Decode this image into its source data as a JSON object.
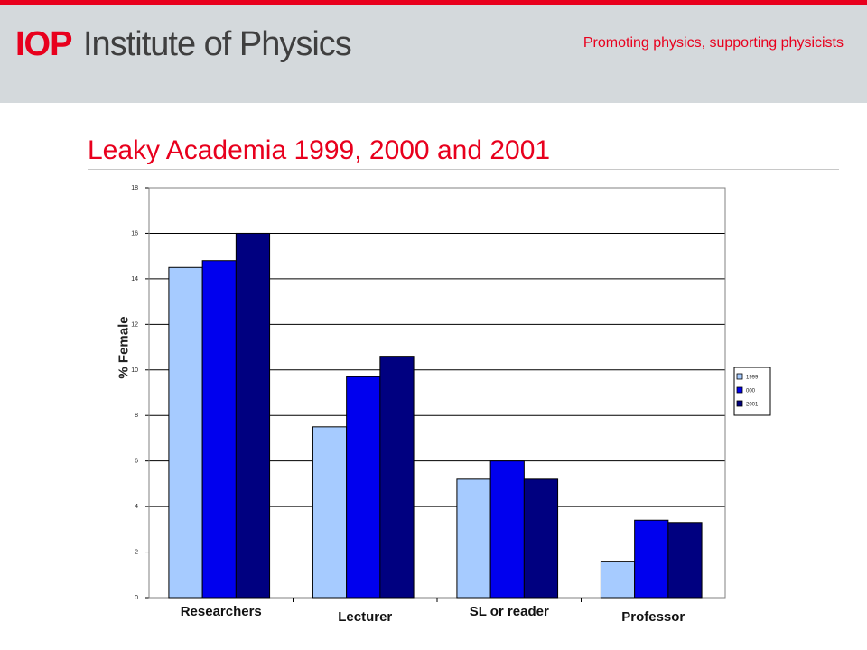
{
  "header": {
    "logo_mark": "IOP",
    "logo_name": "Institute of Physics",
    "tagline": "Promoting physics, supporting physicists",
    "accent": "#e8001d",
    "band_color": "#d4d9dc"
  },
  "slide": {
    "title": "Leaky Academia 1999, 2000 and 2001"
  },
  "chart_data": {
    "type": "bar",
    "title": "",
    "xlabel": "",
    "ylabel": "% Female",
    "ylim": [
      0,
      18
    ],
    "yticks": [
      0,
      2,
      4,
      6,
      8,
      10,
      12,
      14,
      16,
      18
    ],
    "grid": true,
    "legend_position": "right",
    "categories": [
      "Researchers",
      "Lecturer",
      "SL  or reader",
      "Professor"
    ],
    "series": [
      {
        "name": "1999",
        "color": "#a6cbff",
        "values": [
          14.5,
          7.5,
          5.2,
          1.6
        ]
      },
      {
        "name": "000",
        "color": "#0000ee",
        "values": [
          14.8,
          9.7,
          6.0,
          3.4
        ]
      },
      {
        "name": "2001",
        "color": "#000080",
        "values": [
          16.0,
          10.6,
          5.2,
          3.3
        ]
      }
    ]
  }
}
